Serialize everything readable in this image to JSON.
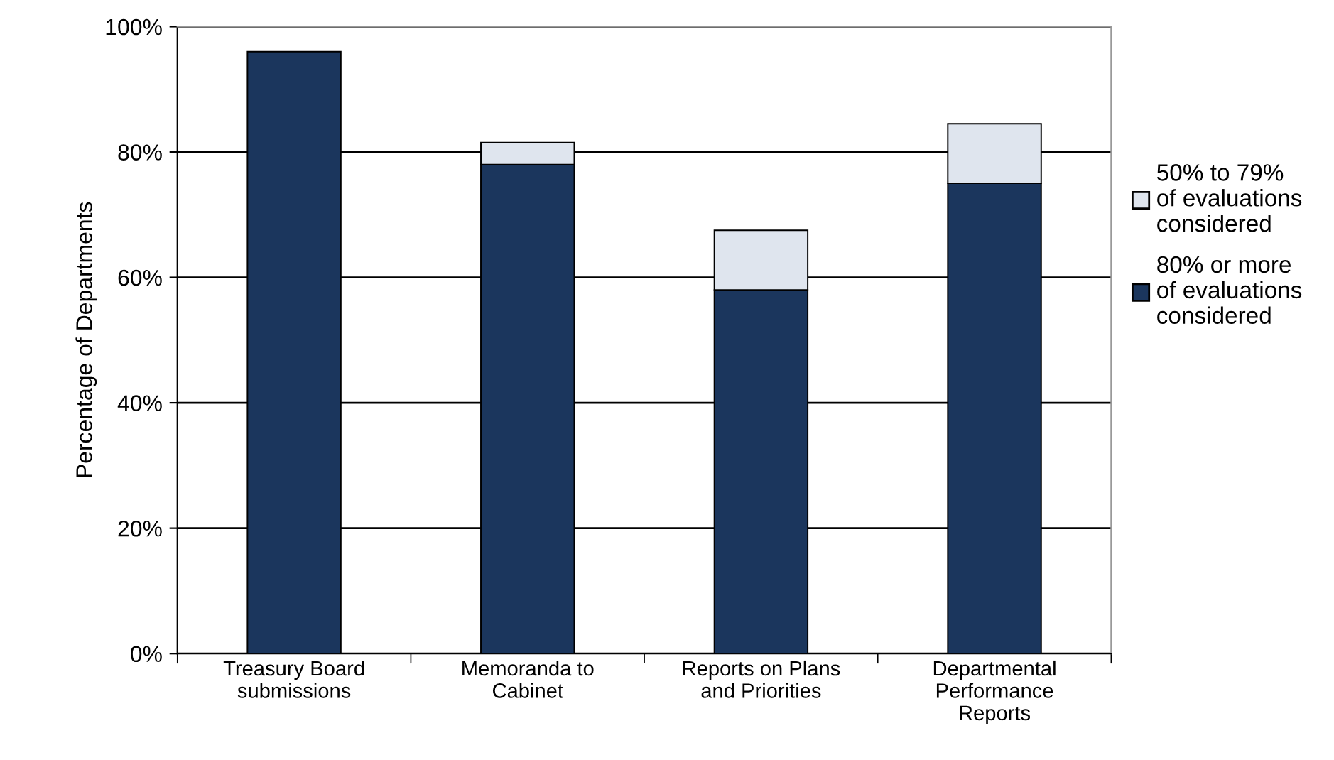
{
  "chart_data": {
    "type": "bar",
    "stacked": true,
    "ylabel": "Percentage of Departments",
    "categories": [
      "Treasury Board\nsubmissions",
      "Memoranda to\nCabinet",
      "Reports on Plans\nand Priorities",
      "Departmental\nPerformance\nReports"
    ],
    "series": [
      {
        "name": "80% or more\nof evaluations\nconsidered",
        "color": "#1b365d",
        "values": [
          96,
          78,
          58,
          75
        ]
      },
      {
        "name": "50% to 79%\nof evaluations\nconsidered",
        "color": "#dfe5ee",
        "values": [
          0,
          3.5,
          9.5,
          9.5
        ]
      }
    ],
    "ylim": [
      0,
      100
    ],
    "yticks": [
      {
        "value": 0,
        "label": "0%"
      },
      {
        "value": 20,
        "label": "20%"
      },
      {
        "value": 40,
        "label": "40%"
      },
      {
        "value": 60,
        "label": "60%"
      },
      {
        "value": 80,
        "label": "80%"
      },
      {
        "value": 100,
        "label": "100%"
      }
    ],
    "grid": "y",
    "legend": "right"
  }
}
